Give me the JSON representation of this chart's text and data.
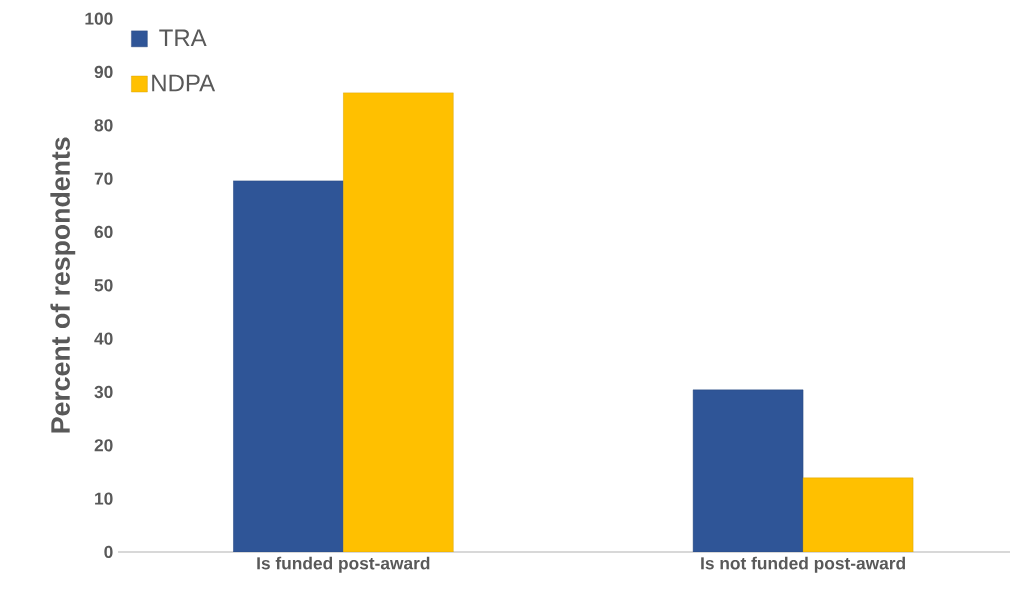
{
  "chart_data": {
    "type": "bar",
    "ylabel": "Percent of respondents",
    "categories": [
      "Is funded post-award",
      "Is not funded post-award"
    ],
    "series": [
      {
        "name": "TRA",
        "color": "#2f5597",
        "values": [
          69.6,
          30.4
        ]
      },
      {
        "name": "NDPA",
        "color": "#ffc000",
        "values": [
          86.1,
          13.9
        ]
      }
    ],
    "ylim": [
      0,
      100
    ],
    "yticks": [
      0,
      10,
      20,
      30,
      40,
      50,
      60,
      70,
      80,
      90,
      100
    ],
    "grid": false,
    "legend": "top left"
  }
}
